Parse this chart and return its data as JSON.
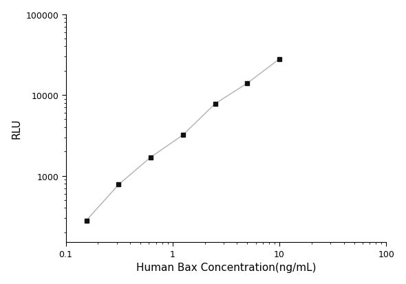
{
  "x": [
    0.156,
    0.313,
    0.625,
    1.25,
    2.5,
    5.0,
    10.0
  ],
  "y": [
    280,
    780,
    1700,
    3200,
    7800,
    14000,
    28000
  ],
  "xlabel": "Human Bax Concentration(ng/mL)",
  "ylabel": "RLU",
  "xlim": [
    0.1,
    100
  ],
  "ylim": [
    150,
    100000
  ],
  "line_color": "#b0b0b0",
  "marker_color": "#111111",
  "marker": "s",
  "marker_size": 5,
  "line_width": 1.0,
  "background_color": "#ffffff",
  "xlabel_fontsize": 11,
  "ylabel_fontsize": 11,
  "tick_fontsize": 9,
  "yticks": [
    1000,
    10000,
    100000
  ],
  "ytick_labels": [
    "1000",
    "10000",
    "100000"
  ],
  "xticks": [
    0.1,
    1,
    10,
    100
  ],
  "xtick_labels": [
    "0.1",
    "1",
    "10",
    "100"
  ]
}
